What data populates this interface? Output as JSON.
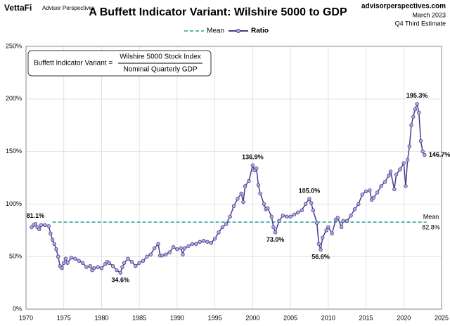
{
  "brand": {
    "logo": "VettaFi",
    "name": "Advisor Perspectives"
  },
  "source": {
    "site": "advisorperspectives.com",
    "date": "March 2023",
    "estimate": "Q4 Third Estimate"
  },
  "formula": {
    "lhs": "Buffett Indicator Variant =",
    "numerator": "Wilshire 5000 Stock Index",
    "denominator": "Nominal Quarterly GDP"
  },
  "chart_data": {
    "type": "line",
    "title": "A Buffett Indicator Variant: Wilshire 5000 to GDP",
    "x": [
      1970.75,
      1971,
      1971.25,
      1971.5,
      1971.75,
      1972,
      1972.5,
      1973,
      1973.25,
      1973.5,
      1973.75,
      1974,
      1974.25,
      1974.5,
      1974.75,
      1975,
      1975.25,
      1975.5,
      1976,
      1976.5,
      1977,
      1977.5,
      1978,
      1978.5,
      1978.75,
      1979,
      1979.5,
      1980,
      1980.5,
      1980.75,
      1981,
      1981.5,
      1982,
      1982.5,
      1982.75,
      1983,
      1983.5,
      1984,
      1984.5,
      1985,
      1985.5,
      1986,
      1986.5,
      1987,
      1987.5,
      1987.75,
      1988,
      1988.5,
      1989,
      1989.5,
      1990,
      1990.5,
      1990.75,
      1991,
      1991.5,
      1992,
      1992.5,
      1993,
      1993.5,
      1994,
      1994.5,
      1995,
      1995.5,
      1996,
      1996.5,
      1997,
      1997.5,
      1998,
      1998.5,
      1998.75,
      1999,
      1999.5,
      2000,
      2000.25,
      2000.5,
      2000.75,
      2001,
      2001.5,
      2001.75,
      2002,
      2002.5,
      2002.75,
      2003,
      2003.5,
      2004,
      2004.5,
      2005,
      2005.5,
      2006,
      2006.5,
      2007,
      2007.5,
      2007.75,
      2008,
      2008.5,
      2008.75,
      2009,
      2009.25,
      2009.75,
      2010,
      2010.5,
      2011,
      2011.25,
      2011.75,
      2012,
      2012.5,
      2013,
      2013.5,
      2014,
      2014.5,
      2015,
      2015.5,
      2015.75,
      2016,
      2016.5,
      2017,
      2017.5,
      2018,
      2018.25,
      2018.75,
      2019,
      2019.5,
      2020,
      2020.25,
      2020.5,
      2020.75,
      2021,
      2021.25,
      2021.5,
      2021.75,
      2022,
      2022.25,
      2022.5,
      2022.75
    ],
    "series": [
      {
        "name": "Ratio",
        "color": "#4b3a8c",
        "marker_color": "#b9a9e3",
        "values": [
          78,
          80,
          81.1,
          78,
          76,
          80,
          80,
          79,
          72,
          66,
          62,
          57,
          50,
          41,
          39,
          44,
          48,
          44,
          49,
          48,
          46,
          44,
          40,
          41,
          37,
          39,
          40,
          39,
          43,
          45,
          44,
          41,
          37,
          34.6,
          40,
          44,
          48,
          45,
          41,
          44,
          46,
          50,
          52,
          58,
          62,
          51,
          51,
          52,
          54,
          59,
          57,
          58,
          52,
          58,
          60,
          62,
          62,
          64,
          65,
          64,
          63,
          67,
          73,
          78,
          81,
          88,
          98,
          105,
          110,
          102,
          117,
          122,
          136.9,
          132,
          134,
          118,
          110,
          100,
          95,
          96,
          88,
          78,
          73,
          84,
          89,
          88,
          88,
          90,
          92,
          94,
          100,
          105,
          101,
          94,
          82,
          62,
          56.6,
          68,
          75,
          78,
          72,
          85,
          87,
          78,
          84,
          84,
          89,
          95,
          100,
          109,
          112,
          113,
          104,
          106,
          111,
          117,
          121,
          127,
          131,
          114,
          128,
          133,
          139,
          117,
          142,
          155,
          175,
          183,
          190,
          195.3,
          187,
          160,
          150,
          146.7
        ],
        "value_labels": [
          null,
          null,
          "81.1%",
          null,
          null,
          null,
          null,
          null,
          null,
          null,
          null,
          null,
          null,
          null,
          null,
          null,
          null,
          null,
          null,
          null,
          null,
          null,
          null,
          null,
          null,
          null,
          null,
          null,
          null,
          null,
          null,
          null,
          null,
          "34.6%",
          null,
          null,
          null,
          null,
          null,
          null,
          null,
          null,
          null,
          null,
          null,
          null,
          null,
          null,
          null,
          null,
          null,
          null,
          null,
          null,
          null,
          null,
          null,
          null,
          null,
          null,
          null,
          null,
          null,
          null,
          null,
          null,
          null,
          null,
          null,
          null,
          null,
          null,
          "136.9%",
          null,
          null,
          null,
          null,
          null,
          null,
          null,
          null,
          null,
          "73.0%",
          null,
          null,
          null,
          null,
          null,
          null,
          null,
          null,
          "105.0%",
          null,
          null,
          null,
          null,
          "56.6%",
          null,
          null,
          null,
          null,
          null,
          null,
          null,
          null,
          null,
          null,
          null,
          null,
          null,
          null,
          null,
          null,
          null,
          null,
          null,
          null,
          null,
          null,
          null,
          null,
          null,
          null,
          null,
          null,
          null,
          null,
          null,
          null,
          "195.3%",
          null,
          null,
          null,
          "146.7%"
        ]
      }
    ],
    "mean": {
      "name": "Mean",
      "value": 82.8,
      "value_label": "82.8%",
      "color": "#20a29a",
      "x": [
        1973.5,
        2023
      ]
    },
    "xlim": [
      1970,
      2025
    ],
    "xticks": [
      1970,
      1975,
      1980,
      1985,
      1990,
      1995,
      2000,
      2005,
      2010,
      2015,
      2020,
      2025
    ],
    "ylim": [
      0,
      250
    ],
    "yticks": [
      {
        "value": 0,
        "label": "0%"
      },
      {
        "value": 50,
        "label": "50%"
      },
      {
        "value": 100,
        "label": "100%"
      },
      {
        "value": 150,
        "label": "150%"
      },
      {
        "value": 200,
        "label": "200%"
      },
      {
        "value": 250,
        "label": "250%"
      }
    ],
    "grid": true
  }
}
